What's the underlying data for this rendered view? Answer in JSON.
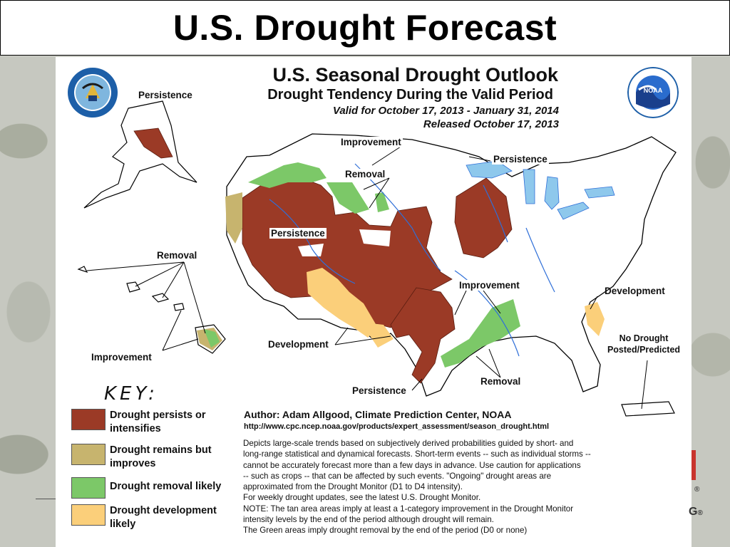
{
  "slide_title": "U.S. Drought Forecast",
  "outlook": {
    "title": "U.S. Seasonal Drought Outlook",
    "subtitle": "Drought Tendency During the Valid Period",
    "valid": "Valid for October 17, 2013 - January 31, 2014",
    "released": "Released October 17, 2013"
  },
  "map_labels": {
    "alaska_persistence": "Persistence",
    "north_improvement": "Improvement",
    "north_removal": "Removal",
    "great_lakes_persistence": "Persistence",
    "west_persistence": "Persistence",
    "hawaii_removal": "Removal",
    "south_improvement": "Improvement",
    "southeast_development": "Development",
    "no_drought_line1": "No Drought",
    "no_drought_line2": "Posted/Predicted",
    "hawaii_improvement": "Improvement",
    "southwest_development": "Development",
    "texas_persistence": "Persistence",
    "gulf_removal": "Removal"
  },
  "key": {
    "title": "KEY:",
    "items": [
      {
        "label_line1": "Drought persists or",
        "label_line2": "intensifies",
        "color": "#9b3a26"
      },
      {
        "label_line1": "Drought remains but",
        "label_line2": "improves",
        "color": "#c7b46e"
      },
      {
        "label_line1": "Drought removal likely",
        "label_line2": "",
        "color": "#7cc868"
      },
      {
        "label_line1": "Drought development",
        "label_line2": "likely",
        "color": "#fbcf7a"
      }
    ]
  },
  "credits": {
    "author": "Author: Adam Allgood, Climate Prediction Center, NOAA",
    "url": "http://www.cpc.ncep.noaa.gov/products/expert_assessment/season_drought.html"
  },
  "notes": [
    "Depicts large-scale trends based on subjectively derived probabilities guided by short- and",
    "long-range statistical and dynamical forecasts. Short-term events -- such as individual storms --",
    "cannot be accurately forecast more than a few days in advance. Use caution for applications",
    "-- such as crops -- that can be affected by such events. \"Ongoing\" drought areas are",
    "approximated from the Drought Monitor (D1 to D4 intensity).",
    "For weekly drought updates, see the latest U.S. Drought Monitor.",
    "NOTE: The tan area areas imply at least a 1-category improvement in the Drought Monitor",
    "intensity levels by the end of the period although drought will remain.",
    "The Green areas imply drought removal by the end of the period (D0 or none)"
  ],
  "colors": {
    "persist": "#9b3a26",
    "improve": "#c7b46e",
    "removal": "#7cc868",
    "development": "#fbcf7a",
    "water": "#8ec8ec",
    "rivers": "#2f6fd8"
  },
  "icons": [
    "doc-seal-icon",
    "noaa-logo-icon"
  ]
}
